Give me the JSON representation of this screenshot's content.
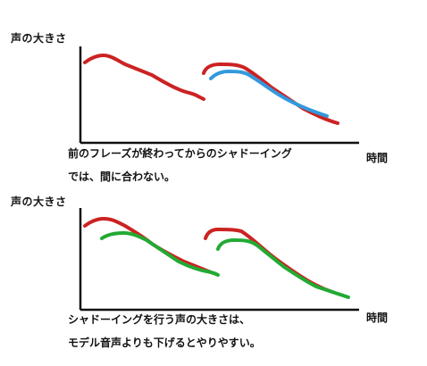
{
  "colors": {
    "model_voice": "#cc2222",
    "shadowing_late": "#3399dd",
    "shadowing_lower": "#22aa33",
    "axis": "#111111"
  },
  "top_panel": {
    "ylabel": "声の大きさ",
    "xlabel": "時間",
    "caption_line1": "前のフレーズが終わってからのシャドーイング",
    "caption_line2": "では、間に合わない。"
  },
  "bottom_panel": {
    "ylabel": "声の大きさ",
    "xlabel": "時間",
    "caption_line1": "シャドーイングを行う声の大きさは、",
    "caption_line2": "モデル音声よりも下げるとやりやすい。"
  }
}
